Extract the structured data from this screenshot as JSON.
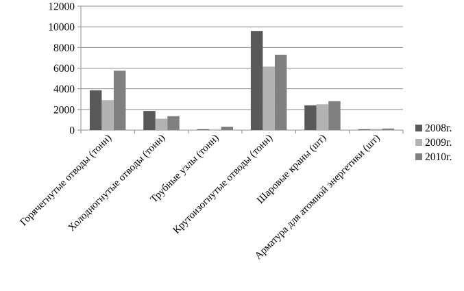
{
  "chart_data": {
    "type": "bar",
    "title": "",
    "xlabel": "",
    "ylabel": "",
    "ylim": [
      0,
      12000
    ],
    "yticks": [
      0,
      2000,
      4000,
      6000,
      8000,
      10000,
      12000
    ],
    "ytick_labels": [
      "0",
      "2000",
      "4000",
      "6000",
      "8000",
      "10000",
      "12000"
    ],
    "grid": true,
    "legend_position": "right",
    "categories": [
      "Горячегнутые отводы (тонн)",
      "Холодногнутые отводы (тонн)",
      "Трубные узлы (тонн)",
      "Крутоизогнутые отводы (тонн)",
      "Шаровые краны (шт)",
      "Арматура для атомной энергетики (шт)"
    ],
    "series": [
      {
        "name": "2008г.",
        "color": "#595959",
        "values": [
          3850,
          1850,
          80,
          9600,
          2400,
          80
        ]
      },
      {
        "name": "2009г.",
        "color": "#b3b3b3",
        "values": [
          2900,
          1100,
          60,
          6150,
          2500,
          120
        ]
      },
      {
        "name": "2010г.",
        "color": "#808080",
        "values": [
          5750,
          1350,
          330,
          7300,
          2800,
          150
        ]
      }
    ]
  }
}
